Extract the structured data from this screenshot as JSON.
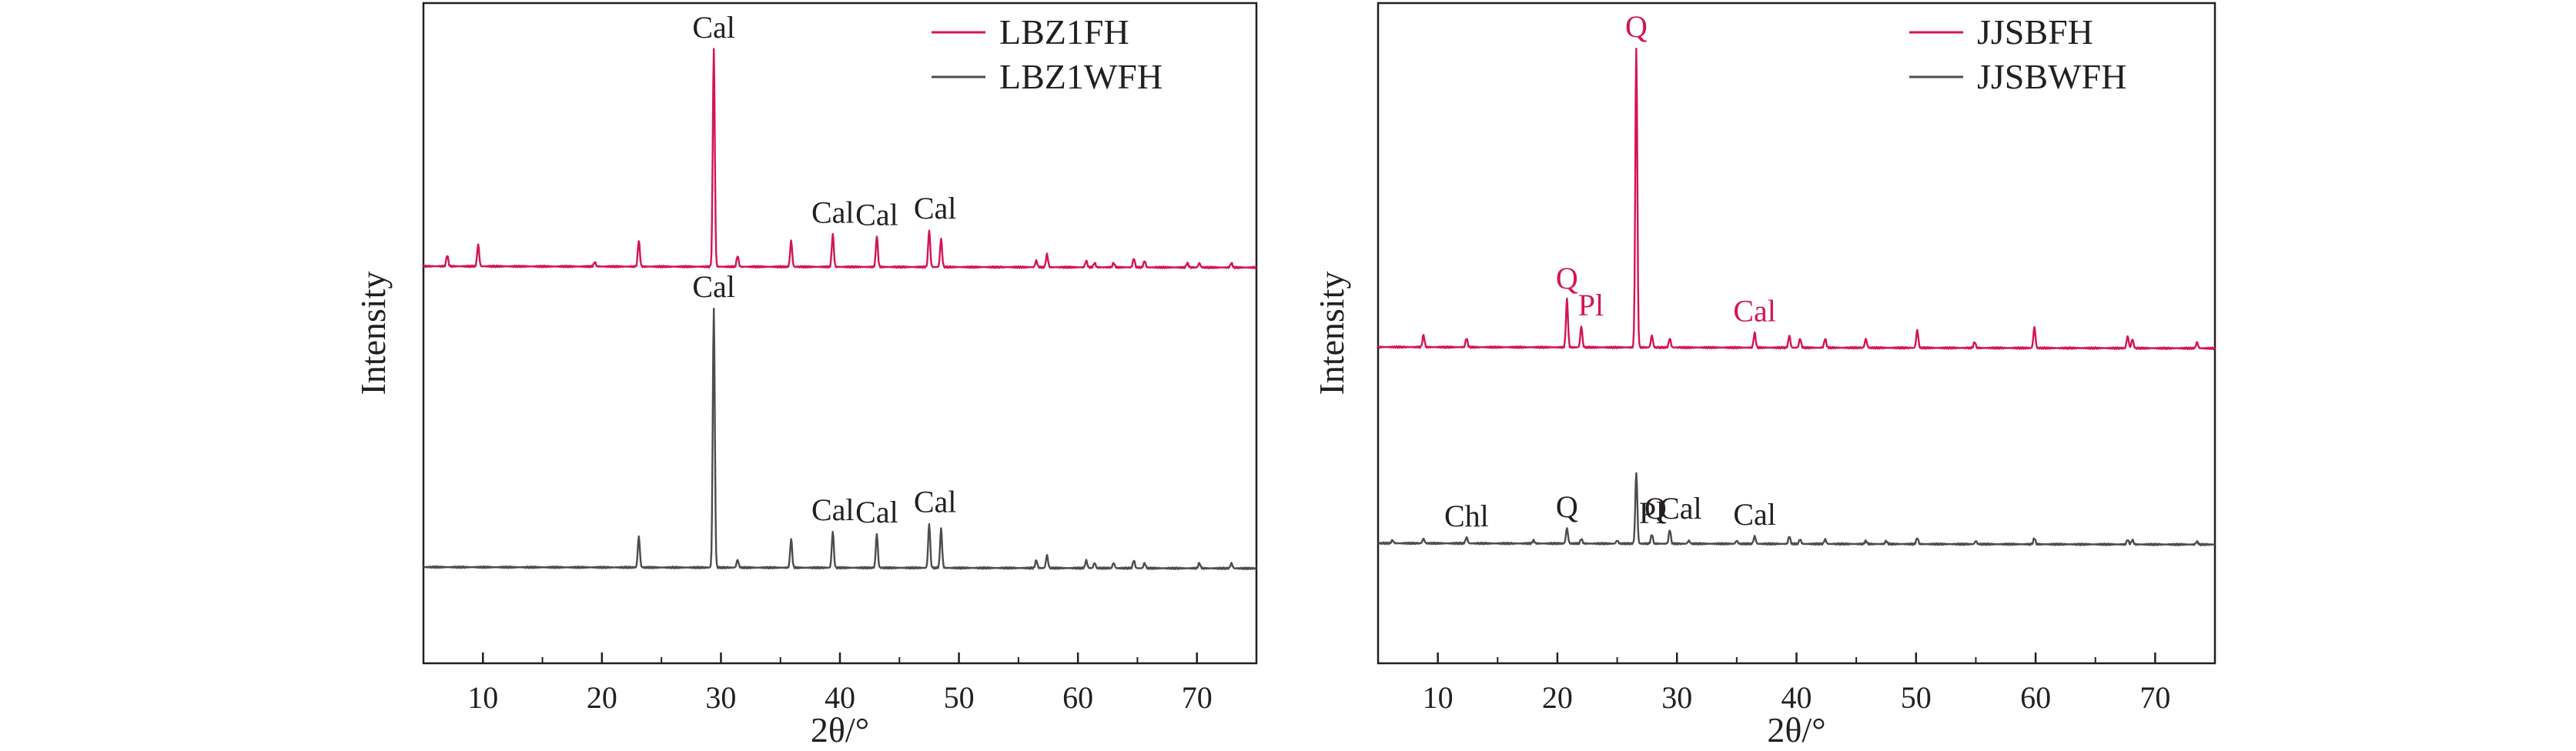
{
  "chart_data": [
    {
      "type": "line",
      "xlabel": "2θ/°",
      "ylabel": "Intensity",
      "xlim": [
        5,
        75
      ],
      "xticks": [
        10,
        20,
        30,
        40,
        50,
        60,
        70
      ],
      "legend_position": "top-right",
      "series": [
        {
          "name": "LBZ1FH",
          "color": "#d4145a",
          "baseline": 0.62,
          "x": [
            7,
            9.6,
            19.4,
            23.1,
            29.4,
            31.4,
            35.9,
            39.4,
            43.1,
            47.5,
            48.5,
            56.5,
            57.4,
            60.7,
            61.4,
            63,
            64.7,
            65.6,
            69.2,
            70.2,
            72.9
          ],
          "peaks": [
            0.05,
            0.1,
            0.02,
            0.12,
            1.0,
            0.05,
            0.12,
            0.15,
            0.14,
            0.17,
            0.13,
            0.03,
            0.06,
            0.03,
            0.02,
            0.02,
            0.04,
            0.03,
            0.02,
            0.02,
            0.02
          ]
        },
        {
          "name": "LBZ1WFH",
          "color": "#4d4d4f",
          "baseline": 0.0,
          "x": [
            23.1,
            29.4,
            31.4,
            35.9,
            39.4,
            43.1,
            47.5,
            48.5,
            56.5,
            57.4,
            60.7,
            61.4,
            63,
            64.7,
            65.6,
            70.2,
            72.9
          ],
          "peaks": [
            0.12,
            1.0,
            0.03,
            0.11,
            0.14,
            0.13,
            0.17,
            0.15,
            0.03,
            0.05,
            0.03,
            0.02,
            0.02,
            0.03,
            0.02,
            0.02,
            0.02
          ]
        }
      ],
      "annotations": [
        {
          "text": "Cal",
          "x": 29.4,
          "series": 0,
          "color": "#231f20"
        },
        {
          "text": "Cal",
          "x": 39.4,
          "series": 0,
          "color": "#231f20"
        },
        {
          "text": "Cal",
          "x": 43.1,
          "series": 0,
          "color": "#231f20"
        },
        {
          "text": "Cal",
          "x": 48,
          "series": 0,
          "color": "#231f20"
        },
        {
          "text": "Cal",
          "x": 29.4,
          "series": 1,
          "color": "#231f20"
        },
        {
          "text": "Cal",
          "x": 39.4,
          "series": 1,
          "color": "#231f20"
        },
        {
          "text": "Cal",
          "x": 43.1,
          "series": 1,
          "color": "#231f20"
        },
        {
          "text": "Cal",
          "x": 48,
          "series": 1,
          "color": "#231f20"
        }
      ]
    },
    {
      "type": "line",
      "xlabel": "2θ/°",
      "ylabel": "Intensity",
      "xlim": [
        5,
        75
      ],
      "xticks": [
        10,
        20,
        30,
        40,
        50,
        60,
        70
      ],
      "legend_position": "top-right",
      "series": [
        {
          "name": "JJSBFH",
          "color": "#d4145a",
          "baseline": 0.25,
          "x": [
            8.8,
            12.4,
            20.8,
            22,
            26.6,
            27.9,
            29.4,
            36.5,
            39.4,
            40.3,
            42.4,
            45.8,
            50.1,
            54.9,
            59.9,
            67.7,
            68.1,
            73.5
          ],
          "peaks": [
            0.04,
            0.03,
            0.16,
            0.07,
            1.0,
            0.04,
            0.03,
            0.05,
            0.04,
            0.03,
            0.03,
            0.03,
            0.06,
            0.02,
            0.07,
            0.04,
            0.03,
            0.02
          ]
        },
        {
          "name": "JJSBWFH",
          "color": "#4d4d4f",
          "baseline": 0.0,
          "x": [
            6.2,
            8.8,
            12.4,
            18,
            20.8,
            22,
            25,
            26.6,
            27.9,
            29.4,
            31,
            35,
            36.5,
            39.4,
            40.3,
            42.4,
            45.8,
            47.5,
            50.1,
            55,
            59.9,
            67.7,
            68.1,
            73.5
          ],
          "peaks": [
            0.02,
            0.03,
            0.04,
            0.02,
            0.1,
            0.03,
            0.02,
            0.46,
            0.06,
            0.09,
            0.02,
            0.02,
            0.05,
            0.05,
            0.03,
            0.03,
            0.02,
            0.02,
            0.04,
            0.02,
            0.04,
            0.03,
            0.03,
            0.02
          ]
        }
      ],
      "annotations": [
        {
          "text": "Q",
          "x": 26.6,
          "series": 0,
          "color": "#d4145a"
        },
        {
          "text": "Q",
          "x": 20.8,
          "series": 0,
          "color": "#d4145a"
        },
        {
          "text": "Pl",
          "x": 22.8,
          "series": 0,
          "color": "#d4145a"
        },
        {
          "text": "Cal",
          "x": 36.5,
          "series": 0,
          "color": "#d4145a"
        },
        {
          "text": "Q",
          "x": 28.2,
          "series": 1,
          "color": "#231f20"
        },
        {
          "text": "Chl",
          "x": 12.4,
          "series": 1,
          "color": "#231f20"
        },
        {
          "text": "Q",
          "x": 20.8,
          "series": 1,
          "color": "#231f20"
        },
        {
          "text": "Pl",
          "x": 27.9,
          "series": 1,
          "color": "#231f20"
        },
        {
          "text": "Cal",
          "x": 30.3,
          "series": 1,
          "color": "#231f20"
        },
        {
          "text": "Cal",
          "x": 36.5,
          "series": 1,
          "color": "#231f20"
        }
      ]
    }
  ]
}
